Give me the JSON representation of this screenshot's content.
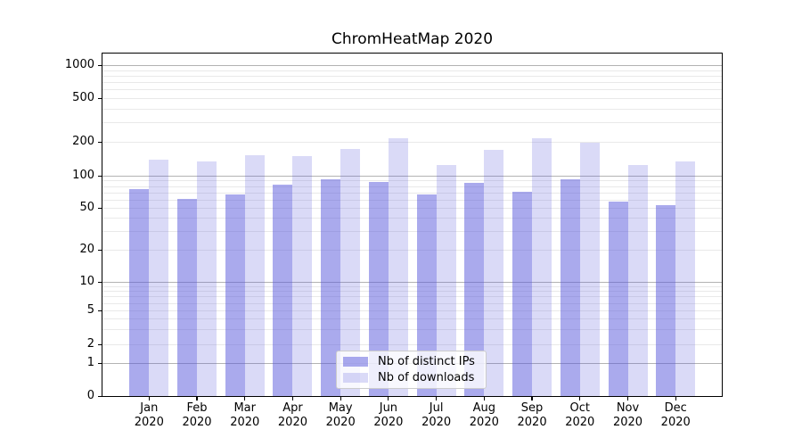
{
  "title": "ChromHeatMap 2020",
  "chart_data": {
    "type": "bar",
    "title": "ChromHeatMap 2020",
    "categories": [
      "Jan",
      "Feb",
      "Mar",
      "Apr",
      "May",
      "Jun",
      "Jul",
      "Aug",
      "Sep",
      "Oct",
      "Nov",
      "Dec"
    ],
    "category_year": "2020",
    "series": [
      {
        "name": "Nb of distinct IPs",
        "color": "#a9a9f2",
        "fill": "rgba(85,85,220,0.5)",
        "values": [
          75,
          61,
          67,
          82,
          93,
          87,
          67,
          86,
          71,
          92,
          57,
          53
        ]
      },
      {
        "name": "Nb of downloads",
        "color": "#d9d9f8",
        "fill": "rgba(85,85,220,0.22)",
        "values": [
          140,
          134,
          152,
          150,
          174,
          215,
          125,
          170,
          214,
          195,
          125,
          135
        ]
      }
    ],
    "y_scale": "symlog",
    "y_ticks": [
      0,
      1,
      2,
      5,
      10,
      20,
      50,
      100,
      200,
      500,
      1000
    ],
    "y_range": [
      0,
      1270
    ],
    "xlabel": "",
    "ylabel": "",
    "grid": true,
    "legend_position": "lower center",
    "grid_major_color": "#b3b3b3",
    "grid_minor_color": "#e9e9e9"
  }
}
